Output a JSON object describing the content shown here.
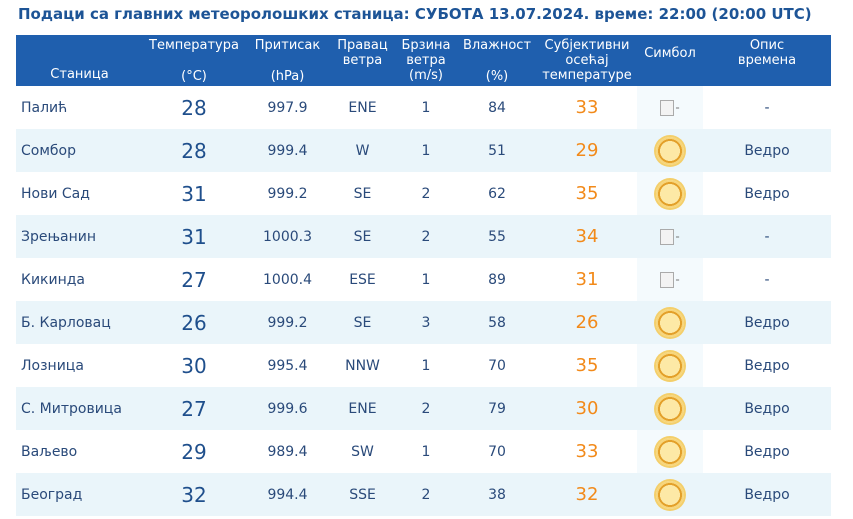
{
  "header": {
    "title": "Подаци са главних метеоролошких станица:  СУБОТА 13.07.2024.  време: 22:00 (20:00 UTC)"
  },
  "columns": {
    "station": "Станица",
    "temp_l1": "Температура",
    "temp_l2": "(°C)",
    "press_l1": "Притисак",
    "press_l2": "(hPa)",
    "wdir_l1": "Правац",
    "wdir_l2": "ветра",
    "wspd_l1": "Брзина",
    "wspd_l2": "ветра",
    "wspd_l3": "(m/s)",
    "hum_l1": "Влажност",
    "hum_l2": "(%)",
    "feel_l1": "Субјективни",
    "feel_l2": "осећај",
    "feel_l3": "температуре",
    "symbol": "Симбол",
    "desc_l1": "Опис",
    "desc_l2": "времена"
  },
  "rows": [
    {
      "station": "Палић",
      "temp": "28",
      "pressure": "997.9",
      "wind_dir": "ENE",
      "wind_speed": "1",
      "humidity": "84",
      "feels": "33",
      "symbol": "broken-image-icon",
      "symbol_alt": "-",
      "desc": "-"
    },
    {
      "station": "Сомбор",
      "temp": "28",
      "pressure": "999.4",
      "wind_dir": "W",
      "wind_speed": "1",
      "humidity": "51",
      "feels": "29",
      "symbol": "sun-icon",
      "symbol_alt": "",
      "desc": "Ведро"
    },
    {
      "station": "Нови Сад",
      "temp": "31",
      "pressure": "999.2",
      "wind_dir": "SE",
      "wind_speed": "2",
      "humidity": "62",
      "feels": "35",
      "symbol": "sun-icon",
      "symbol_alt": "",
      "desc": "Ведро"
    },
    {
      "station": "Зрењанин",
      "temp": "31",
      "pressure": "1000.3",
      "wind_dir": "SE",
      "wind_speed": "2",
      "humidity": "55",
      "feels": "34",
      "symbol": "broken-image-icon",
      "symbol_alt": "-",
      "desc": "-"
    },
    {
      "station": "Кикинда",
      "temp": "27",
      "pressure": "1000.4",
      "wind_dir": "ESE",
      "wind_speed": "1",
      "humidity": "89",
      "feels": "31",
      "symbol": "broken-image-icon",
      "symbol_alt": "-",
      "desc": "-"
    },
    {
      "station": "Б. Карловац",
      "temp": "26",
      "pressure": "999.2",
      "wind_dir": "SE",
      "wind_speed": "3",
      "humidity": "58",
      "feels": "26",
      "symbol": "sun-icon",
      "symbol_alt": "",
      "desc": "Ведро"
    },
    {
      "station": "Лозница",
      "temp": "30",
      "pressure": "995.4",
      "wind_dir": "NNW",
      "wind_speed": "1",
      "humidity": "70",
      "feels": "35",
      "symbol": "sun-icon",
      "symbol_alt": "",
      "desc": "Ведро"
    },
    {
      "station": "С. Митровица",
      "temp": "27",
      "pressure": "999.6",
      "wind_dir": "ENE",
      "wind_speed": "2",
      "humidity": "79",
      "feels": "30",
      "symbol": "sun-icon",
      "symbol_alt": "",
      "desc": "Ведро"
    },
    {
      "station": "Ваљево",
      "temp": "29",
      "pressure": "989.4",
      "wind_dir": "SW",
      "wind_speed": "1",
      "humidity": "70",
      "feels": "33",
      "symbol": "sun-icon",
      "symbol_alt": "",
      "desc": "Ведро"
    },
    {
      "station": "Београд",
      "temp": "32",
      "pressure": "994.4",
      "wind_dir": "SSE",
      "wind_speed": "2",
      "humidity": "38",
      "feels": "32",
      "symbol": "sun-icon",
      "symbol_alt": "",
      "desc": "Ведро"
    }
  ],
  "colors": {
    "header_bg": "#1f5fae",
    "title": "#1d5496",
    "row_alt": "#eaf5fa",
    "feels": "#f28a1a"
  }
}
